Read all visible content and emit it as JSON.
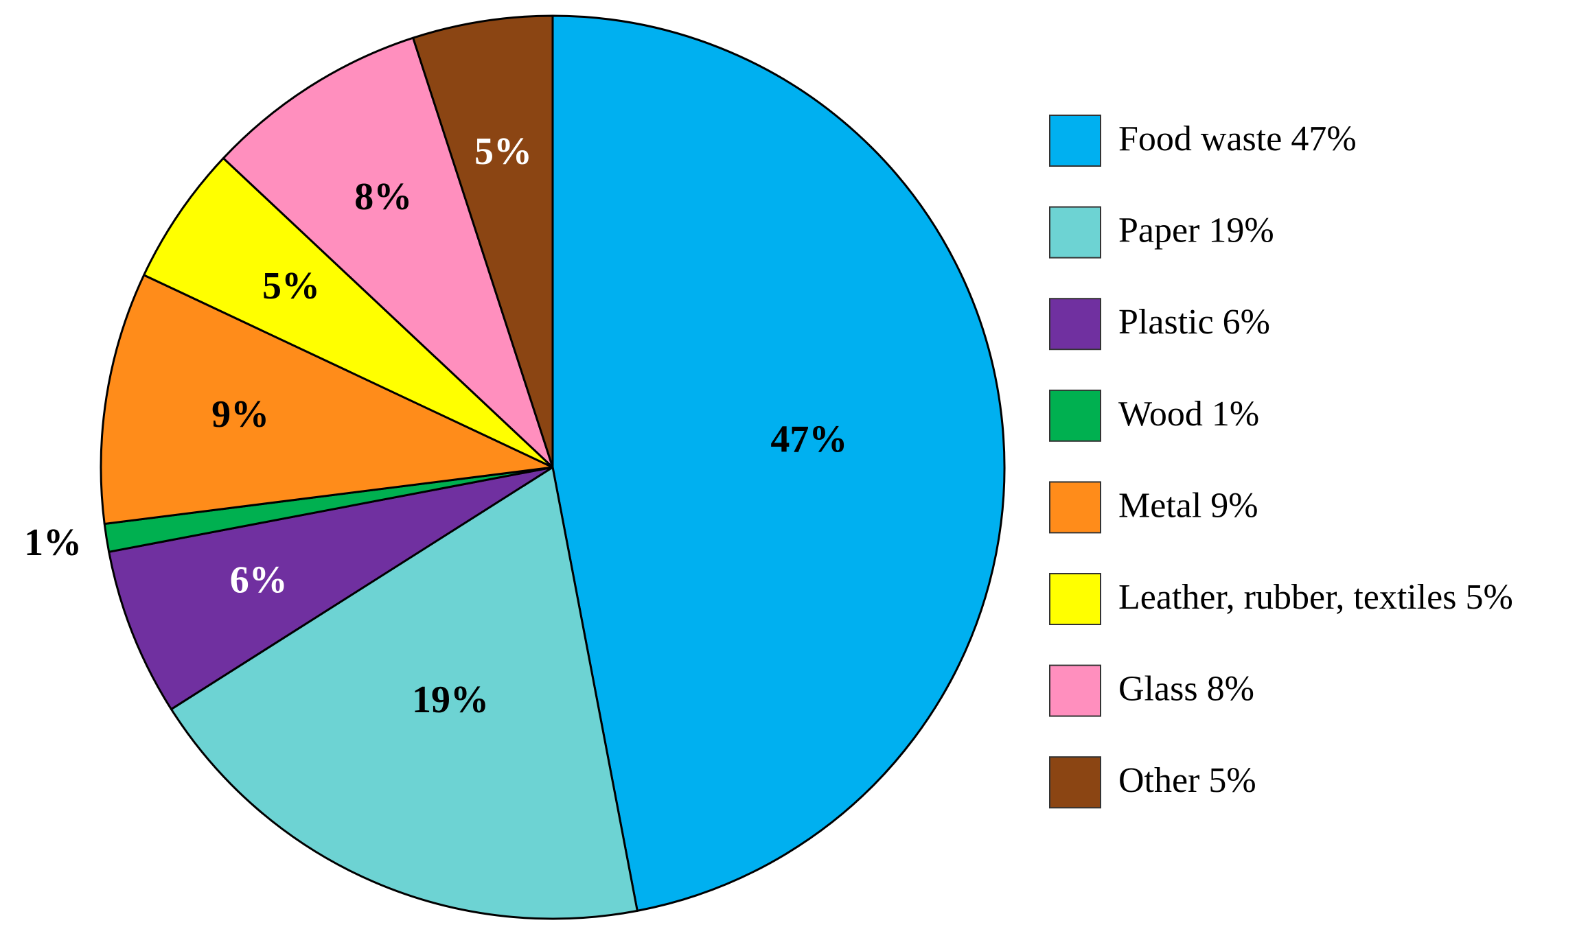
{
  "chart_data": {
    "type": "pie",
    "categories": [
      "Food waste",
      "Paper",
      "Plastic",
      "Wood",
      "Metal",
      "Leather, rubber, textiles",
      "Glass",
      "Other"
    ],
    "values": [
      47,
      19,
      6,
      1,
      9,
      5,
      8,
      5
    ],
    "value_labels": [
      "47%",
      "19%",
      "6%",
      "1%",
      "9%",
      "5%",
      "8%",
      "5%"
    ],
    "colors": [
      "#00b0f0",
      "#6dd3d3",
      "#7030a0",
      "#00b050",
      "#ff8c1a",
      "#ffff00",
      "#ff8fbe",
      "#8b4513"
    ],
    "legend": "right"
  }
}
